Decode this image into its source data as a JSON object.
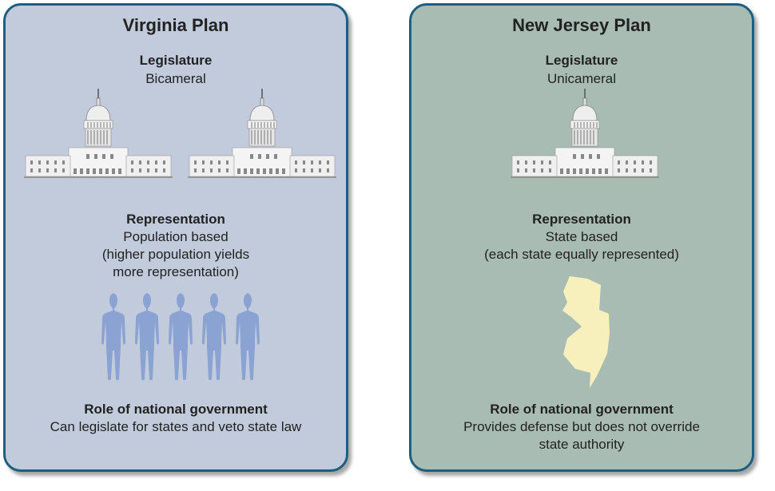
{
  "virginia": {
    "title": "Virginia Plan",
    "legislature_heading": "Legislature",
    "legislature_value": "Bicameral",
    "representation_heading": "Representation",
    "representation_lines": [
      "Population based",
      "(higher population yields",
      "more representation)"
    ],
    "role_heading": "Role of national government",
    "role_lines": [
      "Can legislate for states and veto state law"
    ],
    "icons": {
      "building": "capitol-icon",
      "count_buildings": 2,
      "people": "person-icon",
      "count_people": 5
    }
  },
  "new_jersey": {
    "title": "New Jersey Plan",
    "legislature_heading": "Legislature",
    "legislature_value": "Unicameral",
    "representation_heading": "Representation",
    "representation_lines": [
      "State based",
      "(each state equally represented)"
    ],
    "role_heading": "Role of national government",
    "role_lines": [
      "Provides defense but does not override",
      "state authority"
    ],
    "icons": {
      "building": "capitol-icon",
      "count_buildings": 1,
      "state": "new-jersey-map-icon"
    }
  },
  "colors": {
    "border": "#1d5f80",
    "virginia_bg": "#c1cbdc",
    "new_jersey_bg": "#a9bcb3",
    "person": "#8aa3d3",
    "state": "#f7f0bd"
  }
}
